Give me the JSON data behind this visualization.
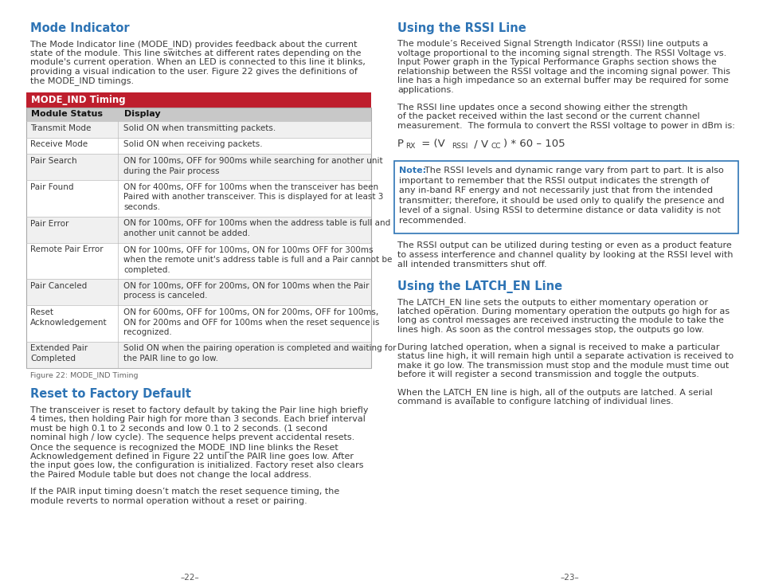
{
  "bg_color": "#ffffff",
  "heading_color": "#2e74b5",
  "text_color": "#3a3a3a",
  "table_header_bg": "#be1e2d",
  "table_subheader_bg": "#c8c8c8",
  "table_row_bg1": "#f0f0f0",
  "table_row_bg2": "#ffffff",
  "note_border_color": "#2e74b5",
  "note_label_color": "#2e74b5",
  "page_footer_color": "#555555",
  "left_heading1": "Mode Indicator",
  "left_text1": "The Mode Indicator line (MODE_IND) provides feedback about the current\nstate of the module. This line switches at different rates depending on the\nmodule's current operation. When an LED is connected to this line it blinks,\nproviding a visual indication to the user. Figure 22 gives the definitions of\nthe MODE_IND timings.",
  "table_title": "MODE_IND Timing",
  "table_col1_header": "Module Status",
  "table_col2_header": "Display",
  "table_rows": [
    [
      "Transmit Mode",
      "Solid ON when transmitting packets."
    ],
    [
      "Receive Mode",
      "Solid ON when receiving packets."
    ],
    [
      "Pair Search",
      "ON for 100ms, OFF for 900ms while searching for another unit\nduring the Pair process"
    ],
    [
      "Pair Found",
      "ON for 400ms, OFF for 100ms when the transceiver has been\nPaired with another transceiver. This is displayed for at least 3\nseconds."
    ],
    [
      "Pair Error",
      "ON for 100ms, OFF for 100ms when the address table is full and\nanother unit cannot be added."
    ],
    [
      "Remote Pair Error",
      "ON for 100ms, OFF for 100ms, ON for 100ms OFF for 300ms\nwhen the remote unit's address table is full and a Pair cannot be\ncompleted."
    ],
    [
      "Pair Canceled",
      "ON for 100ms, OFF for 200ms, ON for 100ms when the Pair\nprocess is canceled."
    ],
    [
      "Reset\nAcknowledgement",
      "ON for 600ms, OFF for 100ms, ON for 200ms, OFF for 100ms,\nON for 200ms and OFF for 100ms when the reset sequence is\nrecognized."
    ],
    [
      "Extended Pair\nCompleted",
      "Solid ON when the pairing operation is completed and waiting for\nthe PAIR line to go low."
    ]
  ],
  "figure_caption": "Figure 22: MODE_IND Timing",
  "left_heading2": "Reset to Factory Default",
  "left_text2": "The transceiver is reset to factory default by taking the Pair line high briefly\n4 times, then holding Pair high for more than 3 seconds. Each brief interval\nmust be high 0.1 to 2 seconds and low 0.1 to 2 seconds. (1 second\nnominal high / low cycle). The sequence helps prevent accidental resets.\nOnce the sequence is recognized the MODE_IND line blinks the Reset\nAcknowledgement defined in Figure 22 until the PAIR line goes low. After\nthe input goes low, the configuration is initialized. Factory reset also clears\nthe Paired Module table but does not change the local address.",
  "left_text3": "If the PAIR input timing doesn’t match the reset sequence timing, the\nmodule reverts to normal operation without a reset or pairing.",
  "right_heading1": "Using the RSSI Line",
  "right_text1": "The module’s Received Signal Strength Indicator (RSSI) line outputs a\nvoltage proportional to the incoming signal strength. The RSSI Voltage vs.\nInput Power graph in the Typical Performance Graphs section shows the\nrelationship between the RSSI voltage and the incoming signal power. This\nline has a high impedance so an external buffer may be required for some\napplications.",
  "right_text2": "The RSSI line updates once a second showing either the strength\nof the packet received within the last second or the current channel\nmeasurement.  The formula to convert the RSSI voltage to power in dBm is:",
  "note_label": "Note:",
  "note_text": "The RSSI levels and dynamic range vary from part to part. It is also\nimportant to remember that the RSSI output indicates the strength of\nany in-band RF energy and not necessarily just that from the intended\ntransmitter; therefore, it should be used only to qualify the presence and\nlevel of a signal. Using RSSI to determine distance or data validity is not\nrecommended.",
  "right_text3": "The RSSI output can be utilized during testing or even as a product feature\nto assess interference and channel quality by looking at the RSSI level with\nall intended transmitters shut off.",
  "right_heading2": "Using the LATCH_EN Line",
  "right_text4": "The LATCH_EN line sets the outputs to either momentary operation or\nlatched operation. During momentary operation the outputs go high for as\nlong as control messages are received instructing the module to take the\nlines high. As soon as the control messages stop, the outputs go low.",
  "right_text5": "During latched operation, when a signal is received to make a particular\nstatus line high, it will remain high until a separate activation is received to\nmake it go low. The transmission must stop and the module must time out\nbefore it will register a second transmission and toggle the outputs.",
  "right_text6": "When the LATCH_EN line is high, all of the outputs are latched. A serial\ncommand is available to configure latching of individual lines.",
  "page_num_left": "–22–",
  "page_num_right": "–23–"
}
